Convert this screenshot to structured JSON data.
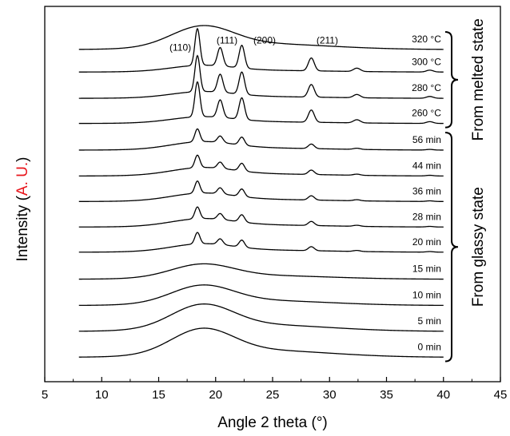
{
  "chart_data": {
    "type": "line",
    "xlabel": "Angle 2 theta (°)",
    "ylabel_prefix": "Intensity (",
    "ylabel_unit": "A. U.",
    "ylabel_suffix": ")",
    "ylabel_unit_color": "#e8141b",
    "xlim": [
      5,
      45
    ],
    "xticks": [
      5,
      10,
      15,
      20,
      25,
      30,
      35,
      40,
      45
    ],
    "yticks_shown": false,
    "grid": false,
    "peak_labels": [
      {
        "text": "(110)",
        "x": 16.9
      },
      {
        "text": "(111)",
        "x": 21.0
      },
      {
        "text": "(200)",
        "x": 24.3
      },
      {
        "text": "(211)",
        "x": 29.8
      }
    ],
    "group_labels": [
      {
        "text": "From melted state",
        "series_from": 0,
        "series_to": 3
      },
      {
        "text": "From glassy state",
        "series_from": 4,
        "series_to": 12
      }
    ],
    "series": [
      {
        "name": "320 °C",
        "baseline": 0.115,
        "amorphous": 0.7,
        "crystalline": 0.0
      },
      {
        "name": "300 °C",
        "baseline": 0.175,
        "amorphous": 0.2,
        "crystalline": 1.0
      },
      {
        "name": "280 °C",
        "baseline": 0.245,
        "amorphous": 0.2,
        "crystalline": 0.98
      },
      {
        "name": "260 °C",
        "baseline": 0.312,
        "amorphous": 0.2,
        "crystalline": 0.95
      },
      {
        "name": "56 min",
        "baseline": 0.383,
        "amorphous": 0.25,
        "crystalline": 0.35
      },
      {
        "name": "44 min",
        "baseline": 0.452,
        "amorphous": 0.25,
        "crystalline": 0.34
      },
      {
        "name": "36 min",
        "baseline": 0.52,
        "amorphous": 0.25,
        "crystalline": 0.33
      },
      {
        "name": "28 min",
        "baseline": 0.588,
        "amorphous": 0.25,
        "crystalline": 0.32
      },
      {
        "name": "20 min",
        "baseline": 0.655,
        "amorphous": 0.25,
        "crystalline": 0.31
      },
      {
        "name": "15 min",
        "baseline": 0.727,
        "amorphous": 0.45,
        "crystalline": 0.0
      },
      {
        "name": "10 min",
        "baseline": 0.797,
        "amorphous": 0.6,
        "crystalline": 0.0
      },
      {
        "name": "5 min",
        "baseline": 0.866,
        "amorphous": 0.8,
        "crystalline": 0.0
      },
      {
        "name": "0 min",
        "baseline": 0.935,
        "amorphous": 0.85,
        "crystalline": 0.0
      }
    ]
  }
}
